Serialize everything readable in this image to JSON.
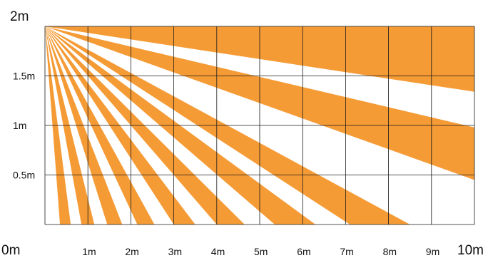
{
  "diagram": {
    "colors": {
      "zone_fill": "#F59B36",
      "grid_line": "#1a1a1a",
      "background": "#FFFFFF"
    },
    "x_range_m": [
      0,
      10
    ],
    "y_range_m": [
      0,
      2
    ],
    "origin_m": [
      0,
      2
    ],
    "grid_step_m": {
      "x": 1,
      "y": 0.5
    },
    "zones": [
      {
        "from_m": [
          0.35,
          0
        ],
        "to_m": [
          0.6,
          0
        ]
      },
      {
        "from_m": [
          0.85,
          0
        ],
        "to_m": [
          1.15,
          0
        ]
      },
      {
        "from_m": [
          1.45,
          0
        ],
        "to_m": [
          1.8,
          0
        ]
      },
      {
        "from_m": [
          2.15,
          0
        ],
        "to_m": [
          2.55,
          0
        ]
      },
      {
        "from_m": [
          3.0,
          0
        ],
        "to_m": [
          3.5,
          0
        ]
      },
      {
        "from_m": [
          4.0,
          0
        ],
        "to_m": [
          4.65,
          0
        ]
      },
      {
        "from_m": [
          5.35,
          0
        ],
        "to_m": [
          6.3,
          0
        ]
      },
      {
        "from_m": [
          7.1,
          0
        ],
        "to_m": [
          8.5,
          0
        ]
      },
      {
        "from_m": [
          10,
          0.45
        ],
        "to_m": [
          10,
          0.98
        ]
      },
      {
        "from_m": [
          10,
          1.34
        ],
        "to_m": [
          10,
          2.0
        ]
      }
    ],
    "x_labels": [
      {
        "value": 0,
        "text": "0m"
      },
      {
        "value": 1,
        "text": "1m"
      },
      {
        "value": 2,
        "text": "2m"
      },
      {
        "value": 3,
        "text": "3m"
      },
      {
        "value": 4,
        "text": "4m"
      },
      {
        "value": 5,
        "text": "5m"
      },
      {
        "value": 6,
        "text": "6m"
      },
      {
        "value": 7,
        "text": "7m"
      },
      {
        "value": 8,
        "text": "8m"
      },
      {
        "value": 9,
        "text": "9m"
      },
      {
        "value": 10,
        "text": "10m"
      }
    ],
    "y_labels": [
      {
        "value": 2,
        "text": "2m"
      },
      {
        "value": 1.5,
        "text": "1.5m"
      },
      {
        "value": 1,
        "text": "1m"
      },
      {
        "value": 0.5,
        "text": "0.5m"
      }
    ]
  }
}
